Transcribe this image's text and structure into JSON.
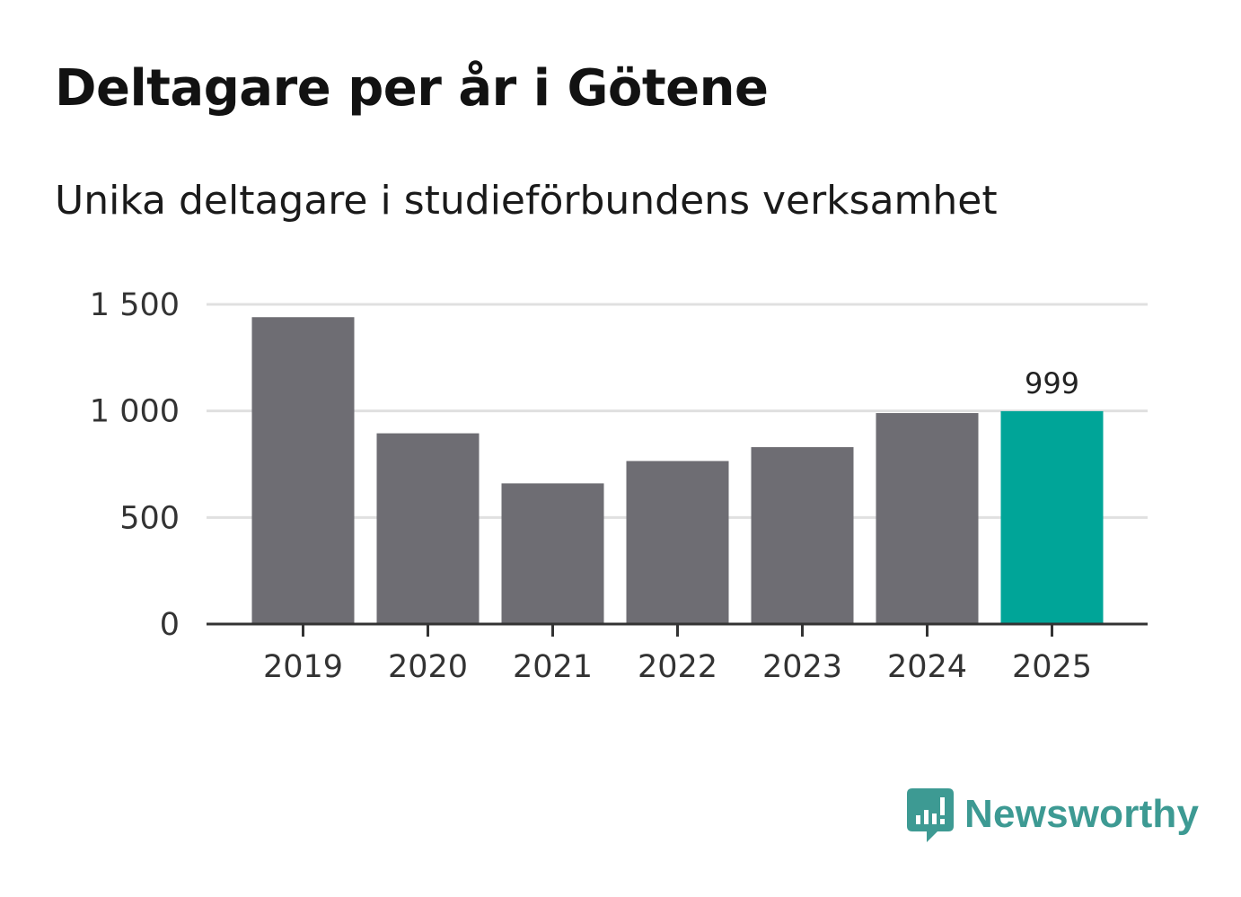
{
  "header": {
    "title": "Deltagare per år i Götene",
    "subtitle": "Unika deltagare i studieförbundens verksamhet"
  },
  "chart_data": {
    "type": "bar",
    "title": "Deltagare per år i Götene",
    "subtitle": "Unika deltagare i studieförbundens verksamhet",
    "xlabel": "",
    "ylabel": "",
    "categories": [
      "2019",
      "2020",
      "2021",
      "2022",
      "2023",
      "2024",
      "2025"
    ],
    "values": [
      1440,
      895,
      660,
      765,
      830,
      990,
      999
    ],
    "ylim": [
      0,
      1500
    ],
    "yticks": [
      0,
      500,
      1000,
      1500
    ],
    "ytick_labels": [
      "0",
      "500",
      "1 000",
      "1 500"
    ],
    "grid": true,
    "highlight_index": 6,
    "data_labels": [
      {
        "index": 6,
        "text": "999"
      }
    ],
    "colors": {
      "bar": "#6e6d73",
      "highlight": "#00a598",
      "grid": "#e0e0e0",
      "axis": "#333333"
    }
  },
  "brand": {
    "name": "Newsworthy",
    "icon": "newsworthy-logo-icon",
    "color": "#3d9a93"
  }
}
